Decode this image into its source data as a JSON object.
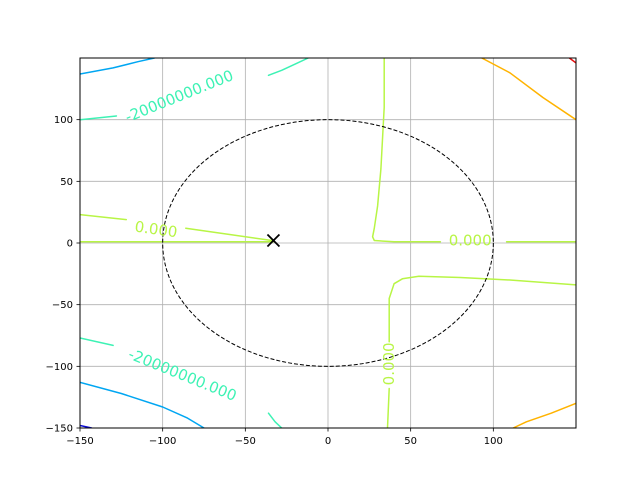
{
  "chart_data": {
    "type": "contour",
    "title": "",
    "xlabel": "",
    "ylabel": "",
    "xlim": [
      -150,
      150
    ],
    "ylim": [
      -150,
      150
    ],
    "grid": true,
    "x_ticks": [
      -150,
      -100,
      -50,
      0,
      50,
      100
    ],
    "x_tick_labels": [
      "−150",
      "−100",
      "−50",
      "0",
      "50",
      "100"
    ],
    "y_ticks": [
      -150,
      -100,
      -50,
      0,
      50,
      100
    ],
    "y_tick_labels": [
      "−150",
      "−100",
      "−50",
      "0",
      "50",
      "100"
    ],
    "colors": {
      "level_0": "#b8f545",
      "level_neg_20M": "#3df2b4",
      "level_neg_40M": "#00a6f2",
      "level_neg_60M": "#0b0bd6",
      "level_pos": "#ffb300",
      "level_pos_high": "#e80d0d",
      "grid": "#b0b0b0",
      "circle": "#000000",
      "marker": "#000000"
    },
    "contour_levels": [
      {
        "level": "-60000000",
        "color_key": "level_neg_60M",
        "lines": [
          [
            [
              -150,
              -148
            ],
            [
              -143,
              -150
            ]
          ]
        ]
      },
      {
        "level": "-40000000",
        "color_key": "level_neg_40M",
        "lines": [
          [
            [
              -150,
              137
            ],
            [
              -130,
              142
            ],
            [
              -115,
              147
            ],
            [
              -105,
              150
            ]
          ],
          [
            [
              -150,
              -113
            ],
            [
              -125,
              -122
            ],
            [
              -100,
              -133
            ],
            [
              -85,
              -142
            ],
            [
              -75,
              -150
            ]
          ]
        ]
      },
      {
        "level": "-20000000",
        "color_key": "level_neg_20M",
        "lines": [
          [
            [
              -150,
              100
            ],
            [
              -128,
              103
            ]
          ],
          [
            [
              -36,
              136
            ],
            [
              -28,
              140
            ],
            [
              -20,
              145
            ],
            [
              -12,
              150
            ]
          ],
          [
            [
              -150,
              -77
            ],
            [
              -130,
              -83
            ]
          ],
          [
            [
              -36,
              -138
            ],
            [
              -32,
              -145
            ],
            [
              -28,
              -150
            ]
          ]
        ]
      },
      {
        "level": "0",
        "color_key": "level_0",
        "lines": [
          [
            [
              -150,
              1
            ],
            [
              -33,
              1
            ]
          ],
          [
            [
              -150,
              23
            ],
            [
              -122,
              19
            ]
          ],
          [
            [
              -86,
              12
            ],
            [
              -60,
              7
            ],
            [
              -34,
              2
            ]
          ],
          [
            [
              34,
              150
            ],
            [
              34,
              110
            ],
            [
              32,
              60
            ],
            [
              30,
              30
            ],
            [
              28,
              12
            ],
            [
              27,
              5
            ],
            [
              28,
              2
            ],
            [
              40,
              1
            ],
            [
              68,
              1
            ]
          ],
          [
            [
              108,
              1
            ],
            [
              150,
              1
            ]
          ],
          [
            [
              150,
              -34
            ],
            [
              110,
              -30
            ],
            [
              80,
              -28
            ],
            [
              55,
              -27
            ],
            [
              45,
              -29
            ],
            [
              40,
              -33
            ],
            [
              37,
              -45
            ],
            [
              37,
              -80
            ]
          ],
          [
            [
              37,
              -118
            ],
            [
              36,
              -150
            ]
          ]
        ]
      },
      {
        "level": "positive",
        "color_key": "level_pos",
        "lines": [
          [
            [
              93,
              150
            ],
            [
              110,
              138
            ],
            [
              130,
              118
            ],
            [
              150,
              100
            ]
          ],
          [
            [
              150,
              -130
            ],
            [
              135,
              -138
            ],
            [
              120,
              -145
            ],
            [
              112,
              -150
            ]
          ]
        ]
      },
      {
        "level": "high",
        "color_key": "level_pos_high",
        "lines": [
          [
            [
              146,
              150
            ],
            [
              150,
              146
            ]
          ]
        ]
      }
    ],
    "contour_labels": [
      {
        "text": "-20000000.000",
        "x": -90,
        "y": 119,
        "rotation": -22,
        "color_key": "level_neg_20M"
      },
      {
        "text": "-20000000.000",
        "x": -88,
        "y": -107,
        "rotation": 22,
        "color_key": "level_neg_20M"
      },
      {
        "text": "0.000",
        "x": -104,
        "y": 11,
        "rotation": 8,
        "color_key": "level_0"
      },
      {
        "text": "0.000",
        "x": 86,
        "y": 2,
        "rotation": 0,
        "color_key": "level_0"
      },
      {
        "text": "0.000",
        "x": 37,
        "y": -98,
        "rotation": -90,
        "color_key": "level_0"
      }
    ],
    "circle": {
      "cx": 0,
      "cy": 0,
      "r": 100,
      "style": "dashed"
    },
    "marker": {
      "x": -33,
      "y": 2,
      "symbol": "x"
    }
  }
}
